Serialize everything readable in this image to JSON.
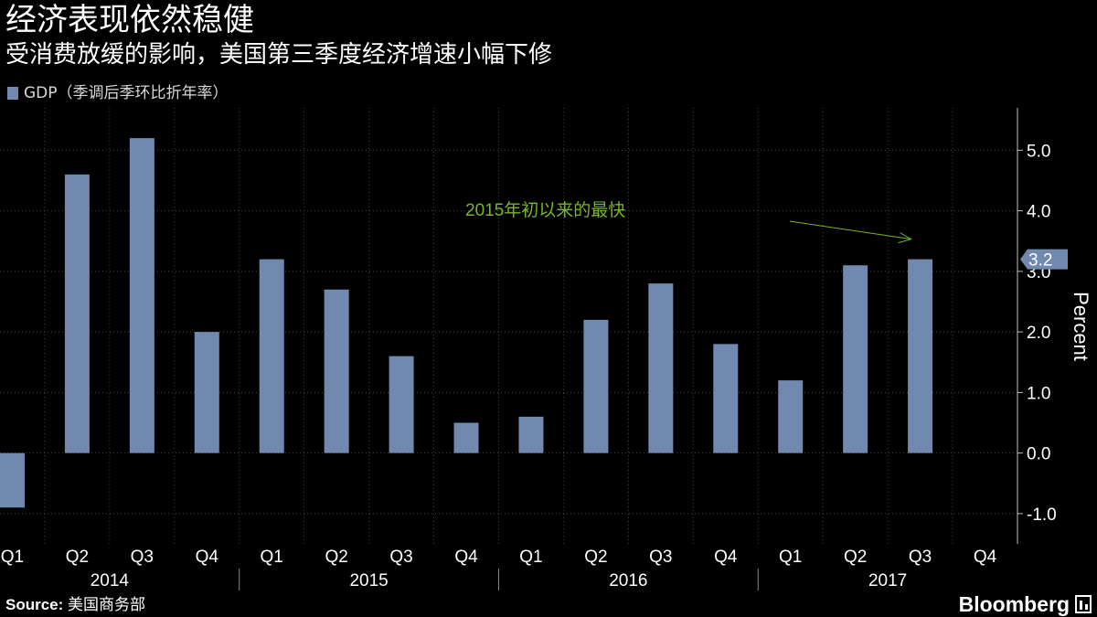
{
  "header": {
    "title": "经济表现依然稳健",
    "subtitle": "受消费放缓的影响，美国第三季度经济增速小幅下修"
  },
  "legend": {
    "label": "GDP（季调后季环比折年率）"
  },
  "footer": {
    "source_label": "Source:",
    "source_text": "美国商务部",
    "brand": "Bloomberg"
  },
  "colors": {
    "background": "#000000",
    "bar": "#7189af",
    "annotation": "#76b52c",
    "grid": "#444444",
    "axis_text": "#ffffff"
  },
  "chart_data": {
    "type": "bar",
    "title": "经济表现依然稳健",
    "xlabel": "",
    "ylabel": "Percent",
    "ylim": [
      -1.5,
      5.7
    ],
    "yticks": [
      -1.0,
      0.0,
      1.0,
      2.0,
      3.0,
      4.0,
      5.0
    ],
    "ytick_labels": [
      "-1.0",
      "0.0",
      "1.0",
      "2.0",
      "3.0",
      "4.0",
      "5.0"
    ],
    "categories": [
      "Q1",
      "Q2",
      "Q3",
      "Q4",
      "Q1",
      "Q2",
      "Q3",
      "Q4",
      "Q1",
      "Q2",
      "Q3",
      "Q4",
      "Q1",
      "Q2",
      "Q3",
      "Q4"
    ],
    "years": [
      {
        "label": "2014",
        "start": 0,
        "count": 4
      },
      {
        "label": "2015",
        "start": 4,
        "count": 4
      },
      {
        "label": "2016",
        "start": 8,
        "count": 4
      },
      {
        "label": "2017",
        "start": 12,
        "count": 4
      }
    ],
    "series": [
      {
        "name": "GDP（季调后季环比折年率）",
        "values": [
          -0.9,
          4.6,
          5.2,
          2.0,
          3.2,
          2.7,
          1.6,
          0.5,
          0.6,
          2.2,
          2.8,
          1.8,
          1.2,
          3.1,
          3.2,
          null
        ]
      }
    ],
    "last_value_label": "3.2",
    "annotation": {
      "text": "2015年初以来的最快",
      "target_index": 14
    },
    "grid": true,
    "legend_position": "top-left"
  }
}
